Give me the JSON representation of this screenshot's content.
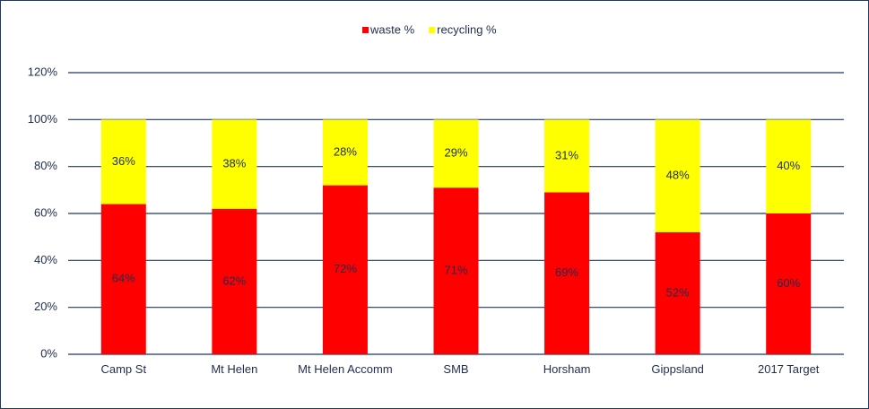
{
  "chart_data": {
    "type": "stacked_bar",
    "categories": [
      "Camp St",
      "Mt Helen",
      "Mt Helen Accomm",
      "SMB",
      "Horsham",
      "Gippsland",
      "2017 Target"
    ],
    "series": [
      {
        "name": "waste %",
        "color": "#ff0000",
        "values": [
          64,
          62,
          72,
          71,
          69,
          52,
          60
        ],
        "value_labels": [
          "64%",
          "62%",
          "72%",
          "71%",
          "69%",
          "52%",
          "60%"
        ]
      },
      {
        "name": "recycling %",
        "color": "#ffff00",
        "values": [
          36,
          38,
          28,
          29,
          31,
          48,
          40
        ],
        "value_labels": [
          "36%",
          "38%",
          "28%",
          "29%",
          "31%",
          "48%",
          "40%"
        ]
      }
    ],
    "ylim": [
      0,
      120
    ],
    "yticks": [
      {
        "value": 0,
        "label": "0%"
      },
      {
        "value": 20,
        "label": "20%"
      },
      {
        "value": 40,
        "label": "40%"
      },
      {
        "value": 60,
        "label": "60%"
      },
      {
        "value": 80,
        "label": "80%"
      },
      {
        "value": 100,
        "label": "100%"
      },
      {
        "value": 120,
        "label": "120%"
      }
    ],
    "grid": true,
    "legend": "top"
  }
}
